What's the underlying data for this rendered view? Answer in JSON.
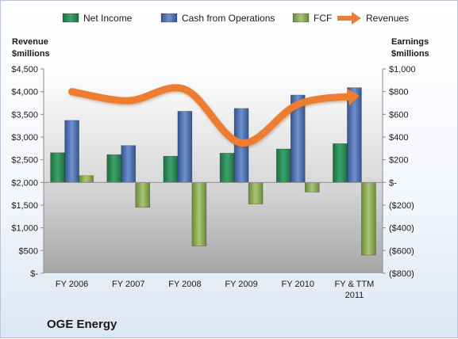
{
  "chart_data": {
    "type": "bar",
    "title": "OGE Energy",
    "categories": [
      "FY 2006",
      "FY 2007",
      "FY 2008",
      "FY 2009",
      "FY 2010",
      "FY & TTM 2011"
    ],
    "left_axis": {
      "label_lines": [
        "Revenue",
        "$millions"
      ],
      "range": [
        0,
        4500
      ],
      "ticks": [
        0,
        500,
        1000,
        1500,
        2000,
        2500,
        3000,
        3500,
        4000,
        4500
      ],
      "tick_labels": [
        "$-",
        "$500",
        "$1,000",
        "$1,500",
        "$2,000",
        "$2,500",
        "$3,000",
        "$3,500",
        "$4,000",
        "$4,500"
      ]
    },
    "right_axis": {
      "label_lines": [
        "Earnings",
        "$millions"
      ],
      "range": [
        -800,
        1000
      ],
      "ticks": [
        -800,
        -600,
        -400,
        -200,
        0,
        200,
        400,
        600,
        800,
        1000
      ],
      "tick_labels": [
        "($800)",
        "($600)",
        "($400)",
        "($200)",
        "$-",
        "$200",
        "$400",
        "$600",
        "$800",
        "$1,000"
      ]
    },
    "series": [
      {
        "name": "Net Income",
        "type": "bar",
        "axis": "right",
        "color": "#2e8b57",
        "values": [
          262,
          245,
          231,
          258,
          295,
          342
        ]
      },
      {
        "name": "Cash from Operations",
        "type": "bar",
        "axis": "right",
        "color": "#4f73b4",
        "values": [
          547,
          325,
          627,
          652,
          770,
          835
        ]
      },
      {
        "name": "FCF",
        "type": "bar",
        "axis": "right",
        "color": "#8fae5a",
        "values": [
          60,
          -220,
          -560,
          -190,
          -85,
          -640
        ]
      },
      {
        "name": "Revenues",
        "type": "line",
        "axis": "left",
        "color": "#ed7d31",
        "values": [
          4000,
          3800,
          4050,
          2870,
          3720,
          3900
        ]
      }
    ],
    "legend_position": "top",
    "grid": false
  }
}
